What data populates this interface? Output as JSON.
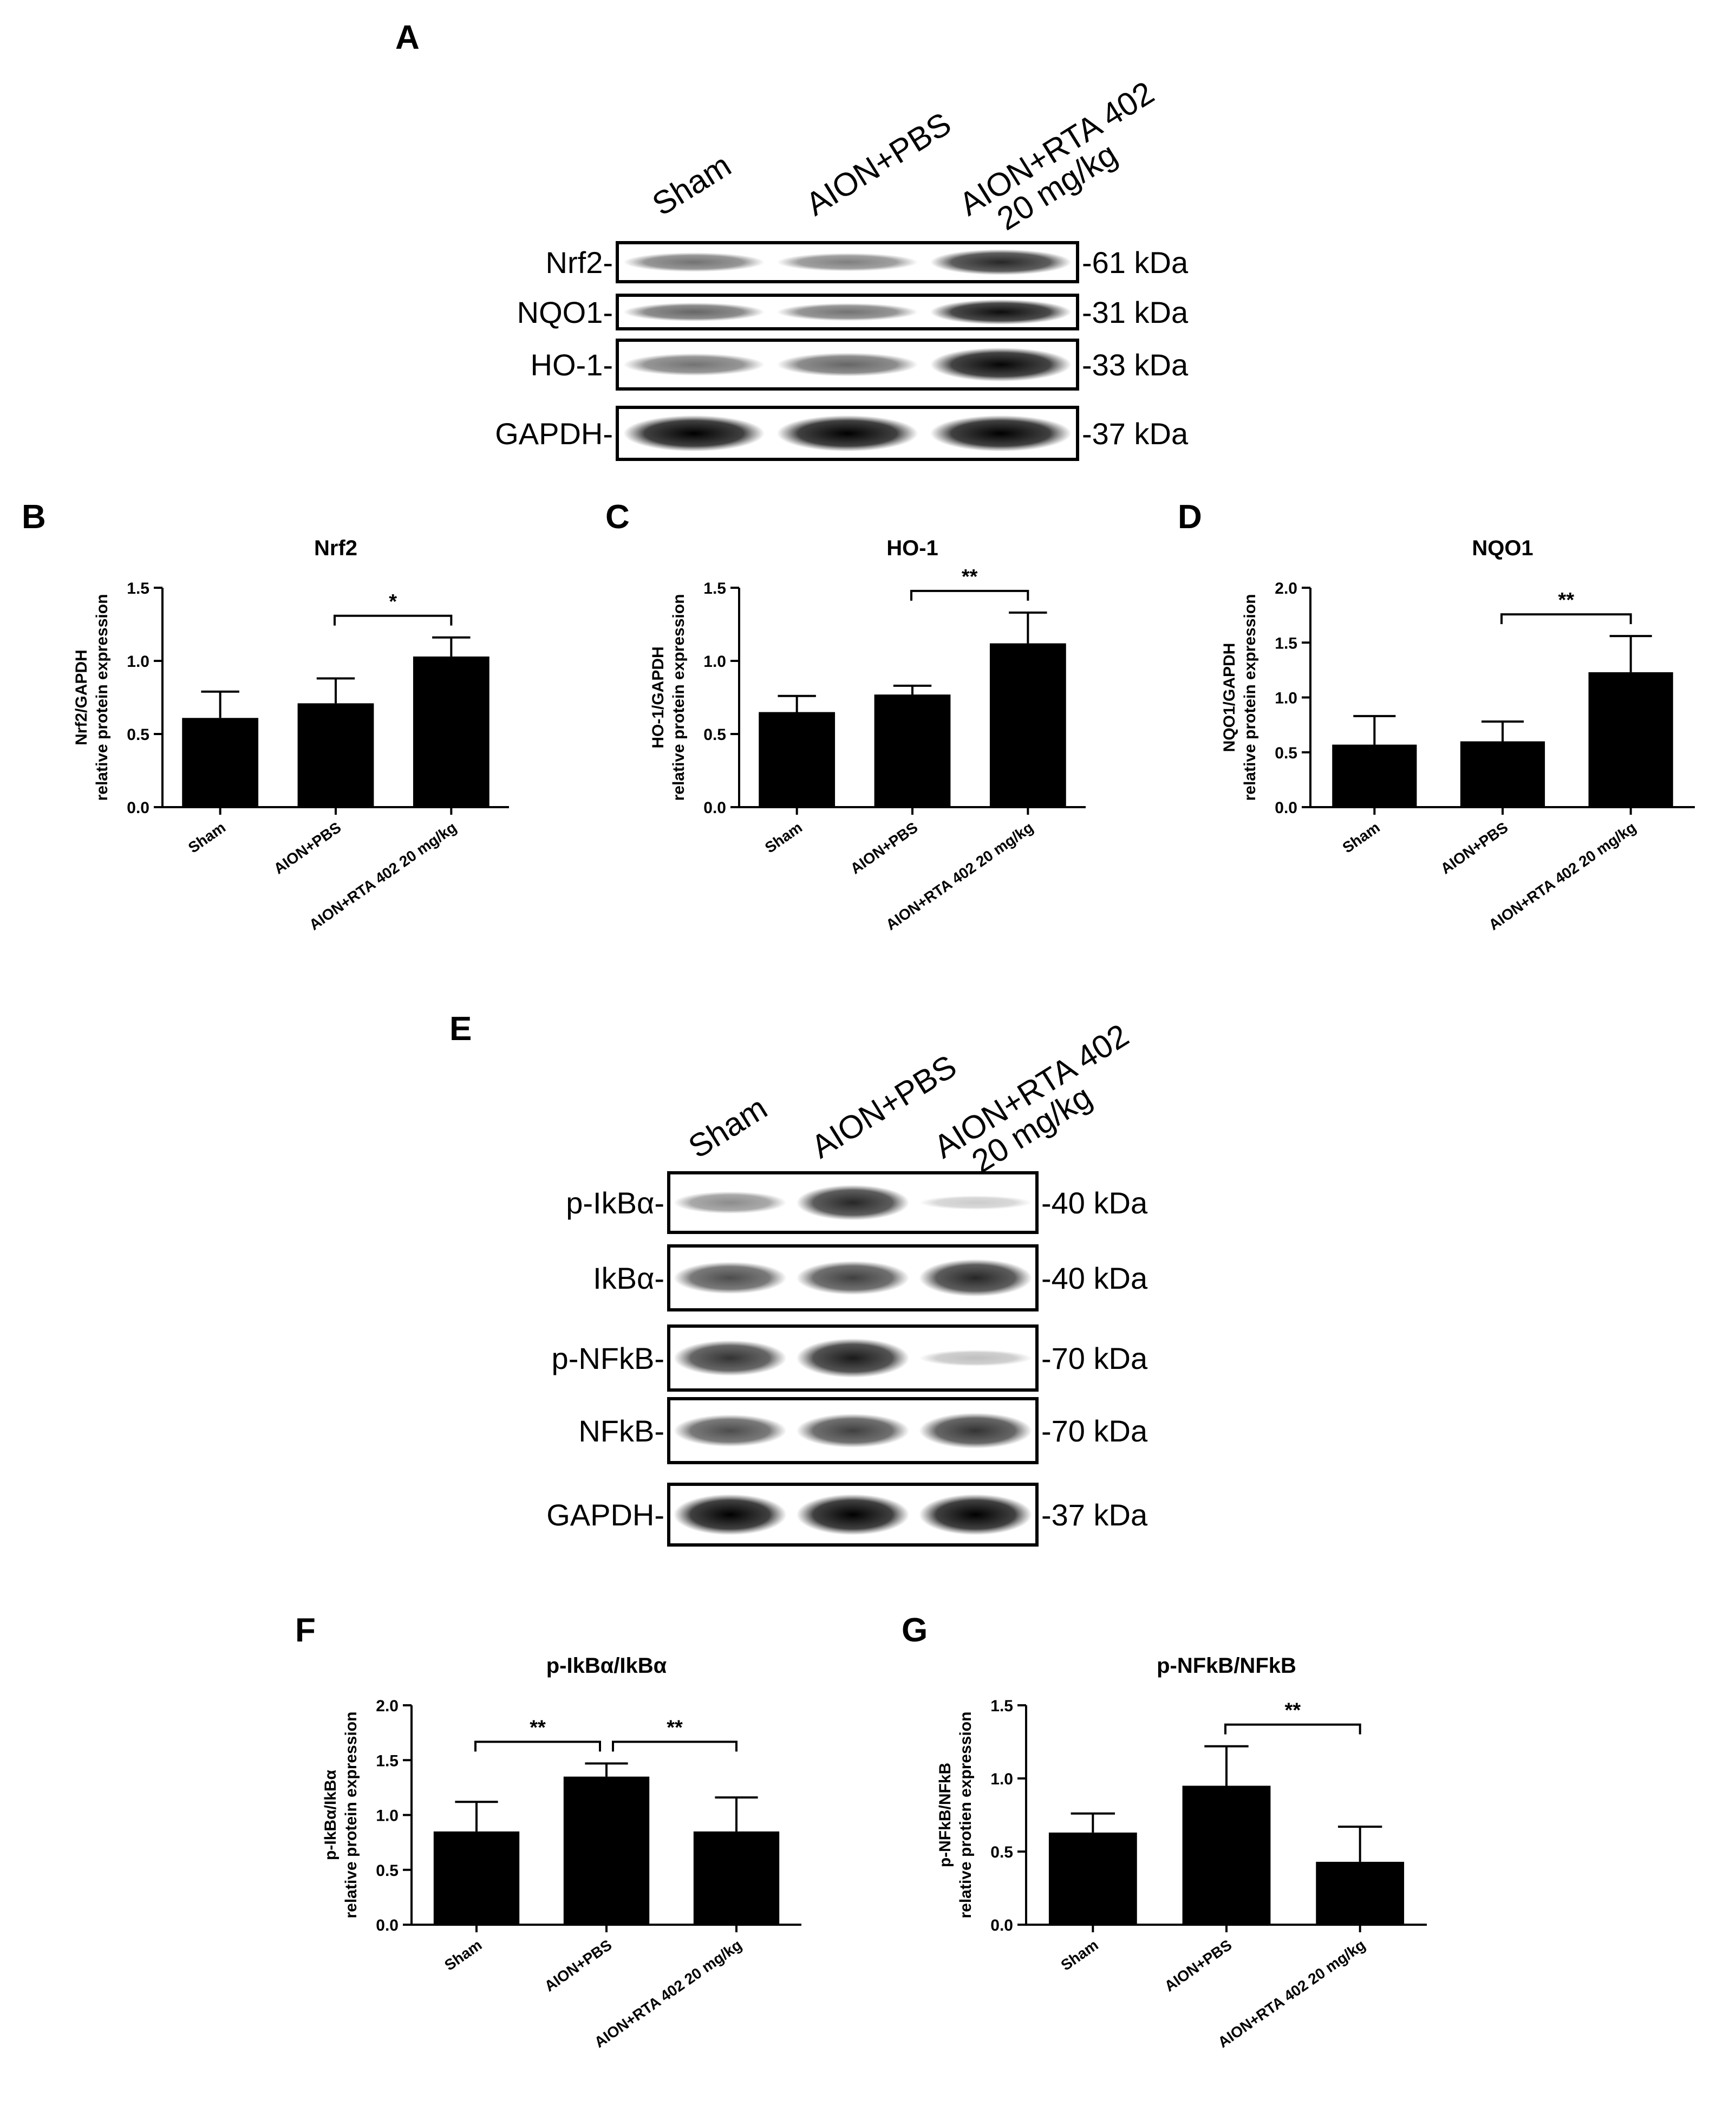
{
  "panel_labels": [
    "A",
    "B",
    "C",
    "D",
    "E",
    "F",
    "G"
  ],
  "blot_a": {
    "lanes": [
      "Sham",
      "AION+PBS",
      "AION+RTA 402\n20 mg/kg"
    ],
    "rows": [
      {
        "label": "Nrf2-",
        "kda": "-61 kDa",
        "intensity": [
          0.55,
          0.5,
          0.85
        ]
      },
      {
        "label": "NQO1-",
        "kda": "-31 kDa",
        "intensity": [
          0.6,
          0.55,
          0.95
        ]
      },
      {
        "label": "HO-1-",
        "kda": "-33 kDa",
        "intensity": [
          0.55,
          0.6,
          0.98
        ]
      },
      {
        "label": "GAPDH-",
        "kda": "-37 kDa",
        "intensity": [
          1.0,
          1.0,
          1.0
        ]
      }
    ]
  },
  "blot_e": {
    "lanes": [
      "Sham",
      "AION+PBS",
      "AION+RTA 402\n20 mg/kg"
    ],
    "rows": [
      {
        "label": "p-IkBα-",
        "kda": "-40 kDa",
        "intensity": [
          0.45,
          0.85,
          0.2
        ]
      },
      {
        "label": "IkBα-",
        "kda": "-40 kDa",
        "intensity": [
          0.7,
          0.75,
          0.85
        ]
      },
      {
        "label": "p-NFkB-",
        "kda": "-70 kDa",
        "intensity": [
          0.8,
          0.9,
          0.25
        ]
      },
      {
        "label": "NFkB-",
        "kda": "-70 kDa",
        "intensity": [
          0.7,
          0.75,
          0.8
        ]
      },
      {
        "label": "GAPDH-",
        "kda": "-37 kDa",
        "intensity": [
          1.0,
          1.0,
          1.0
        ]
      }
    ]
  },
  "chart_data": [
    {
      "id": "B",
      "type": "bar",
      "title": "Nrf2",
      "ylabel": [
        "Nrf2/GAPDH",
        "relative protein expression"
      ],
      "categories": [
        "Sham",
        "AION+PBS",
        "AION+RTA 402 20 mg/kg"
      ],
      "values": [
        0.61,
        0.71,
        1.03
      ],
      "errors": [
        0.18,
        0.17,
        0.13
      ],
      "ylim": [
        0,
        1.5
      ],
      "yticks": [
        "0.0",
        "0.5",
        "1.0",
        "1.5"
      ],
      "significance": [
        {
          "from": 1,
          "to": 2,
          "label": "*"
        }
      ]
    },
    {
      "id": "C",
      "type": "bar",
      "title": "HO-1",
      "ylabel": [
        "HO-1/GAPDH",
        "relative protein expression"
      ],
      "categories": [
        "Sham",
        "AION+PBS",
        "AION+RTA 402 20 mg/kg"
      ],
      "values": [
        0.65,
        0.77,
        1.12
      ],
      "errors": [
        0.11,
        0.06,
        0.21
      ],
      "ylim": [
        0,
        1.5
      ],
      "yticks": [
        "0.0",
        "0.5",
        "1.0",
        "1.5"
      ],
      "significance": [
        {
          "from": 1,
          "to": 2,
          "label": "**"
        }
      ]
    },
    {
      "id": "D",
      "type": "bar",
      "title": "NQO1",
      "ylabel": [
        "NQO1/GAPDH",
        "relative protein expression"
      ],
      "categories": [
        "Sham",
        "AION+PBS",
        "AION+RTA 402 20 mg/kg"
      ],
      "values": [
        0.57,
        0.6,
        1.23
      ],
      "errors": [
        0.26,
        0.18,
        0.33
      ],
      "ylim": [
        0,
        2.0
      ],
      "yticks": [
        "0.0",
        "0.5",
        "1.0",
        "1.5",
        "2.0"
      ],
      "significance": [
        {
          "from": 1,
          "to": 2,
          "label": "**"
        }
      ]
    },
    {
      "id": "F",
      "type": "bar",
      "title": "p-IkBα/IkBα",
      "ylabel": [
        "p-IkBα/IkBα",
        "relative protein expression"
      ],
      "categories": [
        "Sham",
        "AION+PBS",
        "AION+RTA 402 20 mg/kg"
      ],
      "values": [
        0.85,
        1.35,
        0.85
      ],
      "errors": [
        0.27,
        0.12,
        0.31
      ],
      "ylim": [
        0,
        2.0
      ],
      "yticks": [
        "0.0",
        "0.5",
        "1.0",
        "1.5",
        "2.0"
      ],
      "significance": [
        {
          "from": 0,
          "to": 1,
          "label": "**"
        },
        {
          "from": 1,
          "to": 2,
          "label": "**"
        }
      ]
    },
    {
      "id": "G",
      "type": "bar",
      "title": "p-NFkB/NFkB",
      "ylabel": [
        "p-NFkB/NFkB",
        "relative protien expression"
      ],
      "categories": [
        "Sham",
        "AION+PBS",
        "AION+RTA 402 20 mg/kg"
      ],
      "values": [
        0.63,
        0.95,
        0.43
      ],
      "errors": [
        0.13,
        0.27,
        0.24
      ],
      "ylim": [
        0,
        1.5
      ],
      "yticks": [
        "0.0",
        "0.5",
        "1.0",
        "1.5"
      ],
      "significance": [
        {
          "from": 1,
          "to": 2,
          "label": "**"
        }
      ]
    }
  ]
}
